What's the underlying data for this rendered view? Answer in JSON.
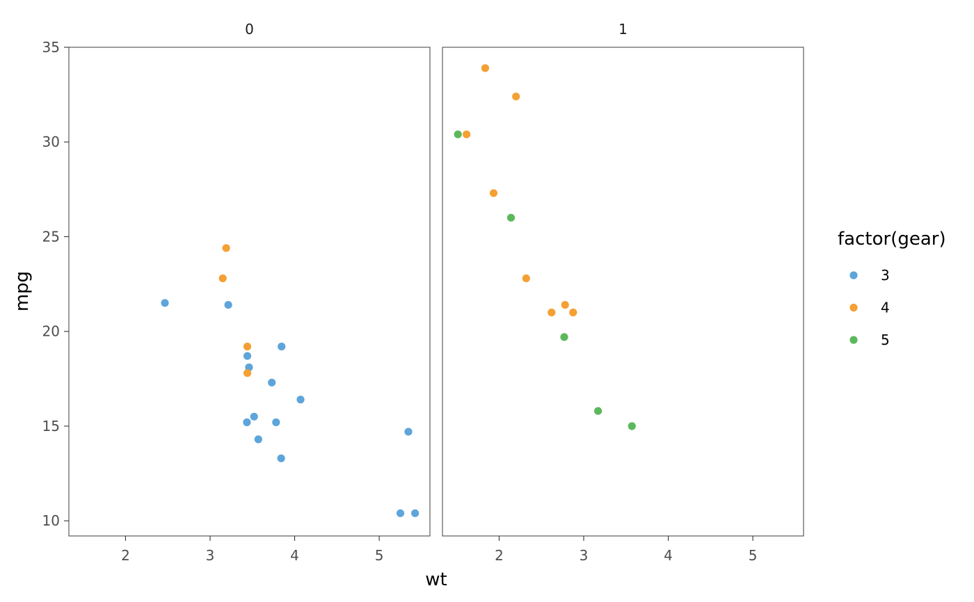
{
  "chart_data": {
    "type": "scatter",
    "xlabel": "wt",
    "ylabel": "mpg",
    "xlim": [
      1.33,
      5.6
    ],
    "ylim": [
      9.2,
      35.0
    ],
    "x_ticks": [
      2,
      3,
      4,
      5
    ],
    "y_ticks": [
      10,
      15,
      20,
      25,
      30,
      35
    ],
    "grid": false,
    "legend": {
      "title": "factor(gear)",
      "position": "right",
      "entries": [
        {
          "label": "3",
          "color": "#5DA5DA"
        },
        {
          "label": "4",
          "color": "#F5A034"
        },
        {
          "label": "5",
          "color": "#5CB85C"
        }
      ]
    },
    "facets": [
      {
        "label": "0",
        "points": [
          {
            "x": 2.465,
            "y": 21.5,
            "gear": "3"
          },
          {
            "x": 3.215,
            "y": 21.4,
            "gear": "3"
          },
          {
            "x": 3.44,
            "y": 18.7,
            "gear": "3"
          },
          {
            "x": 3.46,
            "y": 18.1,
            "gear": "3"
          },
          {
            "x": 3.57,
            "y": 14.3,
            "gear": "3"
          },
          {
            "x": 4.07,
            "y": 16.4,
            "gear": "3"
          },
          {
            "x": 3.73,
            "y": 17.3,
            "gear": "3"
          },
          {
            "x": 3.78,
            "y": 15.2,
            "gear": "3"
          },
          {
            "x": 5.25,
            "y": 10.4,
            "gear": "3"
          },
          {
            "x": 5.424,
            "y": 10.4,
            "gear": "3"
          },
          {
            "x": 5.345,
            "y": 14.7,
            "gear": "3"
          },
          {
            "x": 3.52,
            "y": 15.5,
            "gear": "3"
          },
          {
            "x": 3.435,
            "y": 15.2,
            "gear": "3"
          },
          {
            "x": 3.84,
            "y": 13.3,
            "gear": "3"
          },
          {
            "x": 3.845,
            "y": 19.2,
            "gear": "3"
          },
          {
            "x": 3.19,
            "y": 24.4,
            "gear": "4"
          },
          {
            "x": 3.15,
            "y": 22.8,
            "gear": "4"
          },
          {
            "x": 3.44,
            "y": 19.2,
            "gear": "4"
          },
          {
            "x": 3.44,
            "y": 17.8,
            "gear": "4"
          }
        ]
      },
      {
        "label": "1",
        "points": [
          {
            "x": 2.62,
            "y": 21.0,
            "gear": "4"
          },
          {
            "x": 2.875,
            "y": 21.0,
            "gear": "4"
          },
          {
            "x": 2.32,
            "y": 22.8,
            "gear": "4"
          },
          {
            "x": 2.2,
            "y": 32.4,
            "gear": "4"
          },
          {
            "x": 1.615,
            "y": 30.4,
            "gear": "4"
          },
          {
            "x": 1.835,
            "y": 33.9,
            "gear": "4"
          },
          {
            "x": 1.935,
            "y": 27.3,
            "gear": "4"
          },
          {
            "x": 2.78,
            "y": 21.4,
            "gear": "4"
          },
          {
            "x": 2.14,
            "y": 26.0,
            "gear": "5"
          },
          {
            "x": 1.513,
            "y": 30.4,
            "gear": "5"
          },
          {
            "x": 3.17,
            "y": 15.8,
            "gear": "5"
          },
          {
            "x": 2.77,
            "y": 19.7,
            "gear": "5"
          },
          {
            "x": 3.57,
            "y": 15.0,
            "gear": "5"
          }
        ]
      }
    ]
  }
}
